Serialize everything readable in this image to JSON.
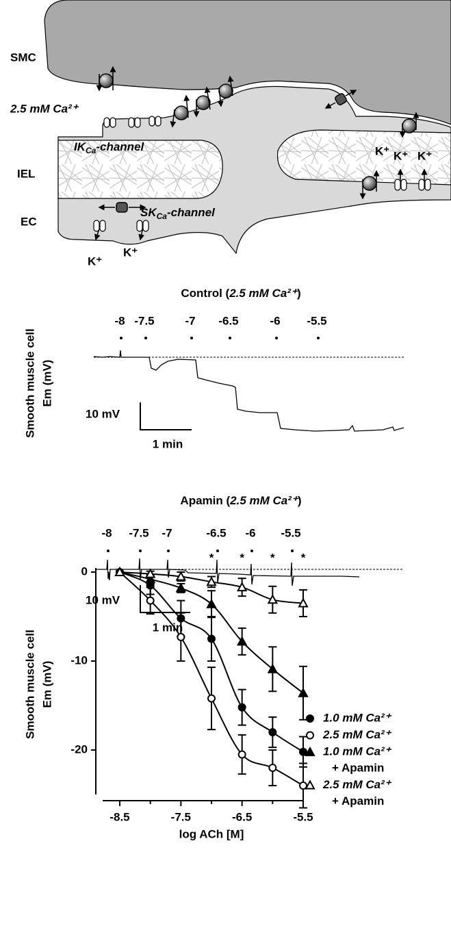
{
  "diagram": {
    "smc_label": "SMC",
    "ca_label": "2.5 mM Ca²⁺",
    "ik_label": [
      "IK",
      "Ca",
      "-channel"
    ],
    "iel_label": "IEL",
    "ec_label": "EC",
    "sk_label": [
      "SK",
      "Ca",
      "-channel"
    ],
    "k_labels": [
      "K⁺",
      "K⁺",
      "K⁺",
      "K⁺",
      "K⁺"
    ]
  },
  "traces": {
    "ylabel": [
      "Smooth muscle cell",
      "Em (mV)"
    ],
    "control": {
      "title": [
        "Control (",
        "2.5 mM Ca²⁺",
        ")"
      ],
      "doses": [
        "-8",
        "-7.5",
        "-7",
        "-6.5",
        "-6",
        "-5.5"
      ],
      "scale_v": "10 mV",
      "scale_t": "1 min"
    },
    "apamin": {
      "title": [
        "Apamin (",
        "2.5 mM Ca²⁺",
        ")"
      ],
      "doses": [
        "-8",
        "-7.5",
        "-7",
        "-6.5",
        "-6",
        "-5.5"
      ],
      "scale_v": "10 mV",
      "scale_t": "1 min"
    }
  },
  "chart_data": {
    "type": "scatter",
    "xlabel": "log ACh [M]",
    "ylabel": [
      "Smooth muscle cell",
      "Em (mV)"
    ],
    "xlim": [
      -8.5,
      -5.5
    ],
    "ylim": [
      -25,
      0
    ],
    "xticks": [
      -8.5,
      -7.5,
      -6.5,
      -5.5
    ],
    "xminorticks": [
      -8,
      -7,
      -6
    ],
    "yticks": [
      0,
      -10,
      -20
    ],
    "fit_curves": true,
    "legend": "right",
    "annotations": [
      {
        "x": -7,
        "text": "*"
      },
      {
        "x": -6.5,
        "text": "*"
      },
      {
        "x": -6,
        "text": "*"
      },
      {
        "x": -5.5,
        "text": "*"
      }
    ],
    "x": [
      -8.5,
      -8,
      -7.5,
      -7,
      -6.5,
      -6,
      -5.5
    ],
    "series": [
      {
        "name": [
          "1.0 mM Ca²⁺"
        ],
        "color": "#000000",
        "marker": "circle",
        "fill": "#000000",
        "values": [
          0,
          -1.5,
          -5.2,
          -7.5,
          -15.2,
          -18,
          -20.2
        ],
        "errors": [
          0,
          1,
          2,
          2.5,
          2,
          1.7,
          1.7
        ]
      },
      {
        "name": [
          "2.5 mM Ca²⁺"
        ],
        "color": "#000000",
        "marker": "circle",
        "fill": "#ffffff",
        "values": [
          0,
          -3.2,
          -7.3,
          -14.2,
          -20.5,
          -22,
          -24
        ],
        "errors": [
          0,
          1.5,
          2.7,
          3.5,
          2.2,
          2,
          2.5
        ]
      },
      {
        "name": [
          "1.0 mM Ca²⁺",
          "+ Apamin"
        ],
        "color": "#000000",
        "marker": "triangle",
        "fill": "#000000",
        "values": [
          0,
          -0.8,
          -1.8,
          -3.6,
          -7.8,
          -10.9,
          -13.6
        ],
        "errors": [
          0,
          0.5,
          0.5,
          1.5,
          1.5,
          2.5,
          3
        ]
      },
      {
        "name": [
          "2.5 mM Ca²⁺",
          "+ Apamin"
        ],
        "color": "#000000",
        "marker": "triangle",
        "fill": "#ffffff",
        "values": [
          0,
          -0.2,
          -0.5,
          -1.1,
          -1.7,
          -3.1,
          -3.5
        ],
        "errors": [
          0,
          0.3,
          0.5,
          0.6,
          1,
          1.5,
          1.5
        ]
      }
    ]
  }
}
